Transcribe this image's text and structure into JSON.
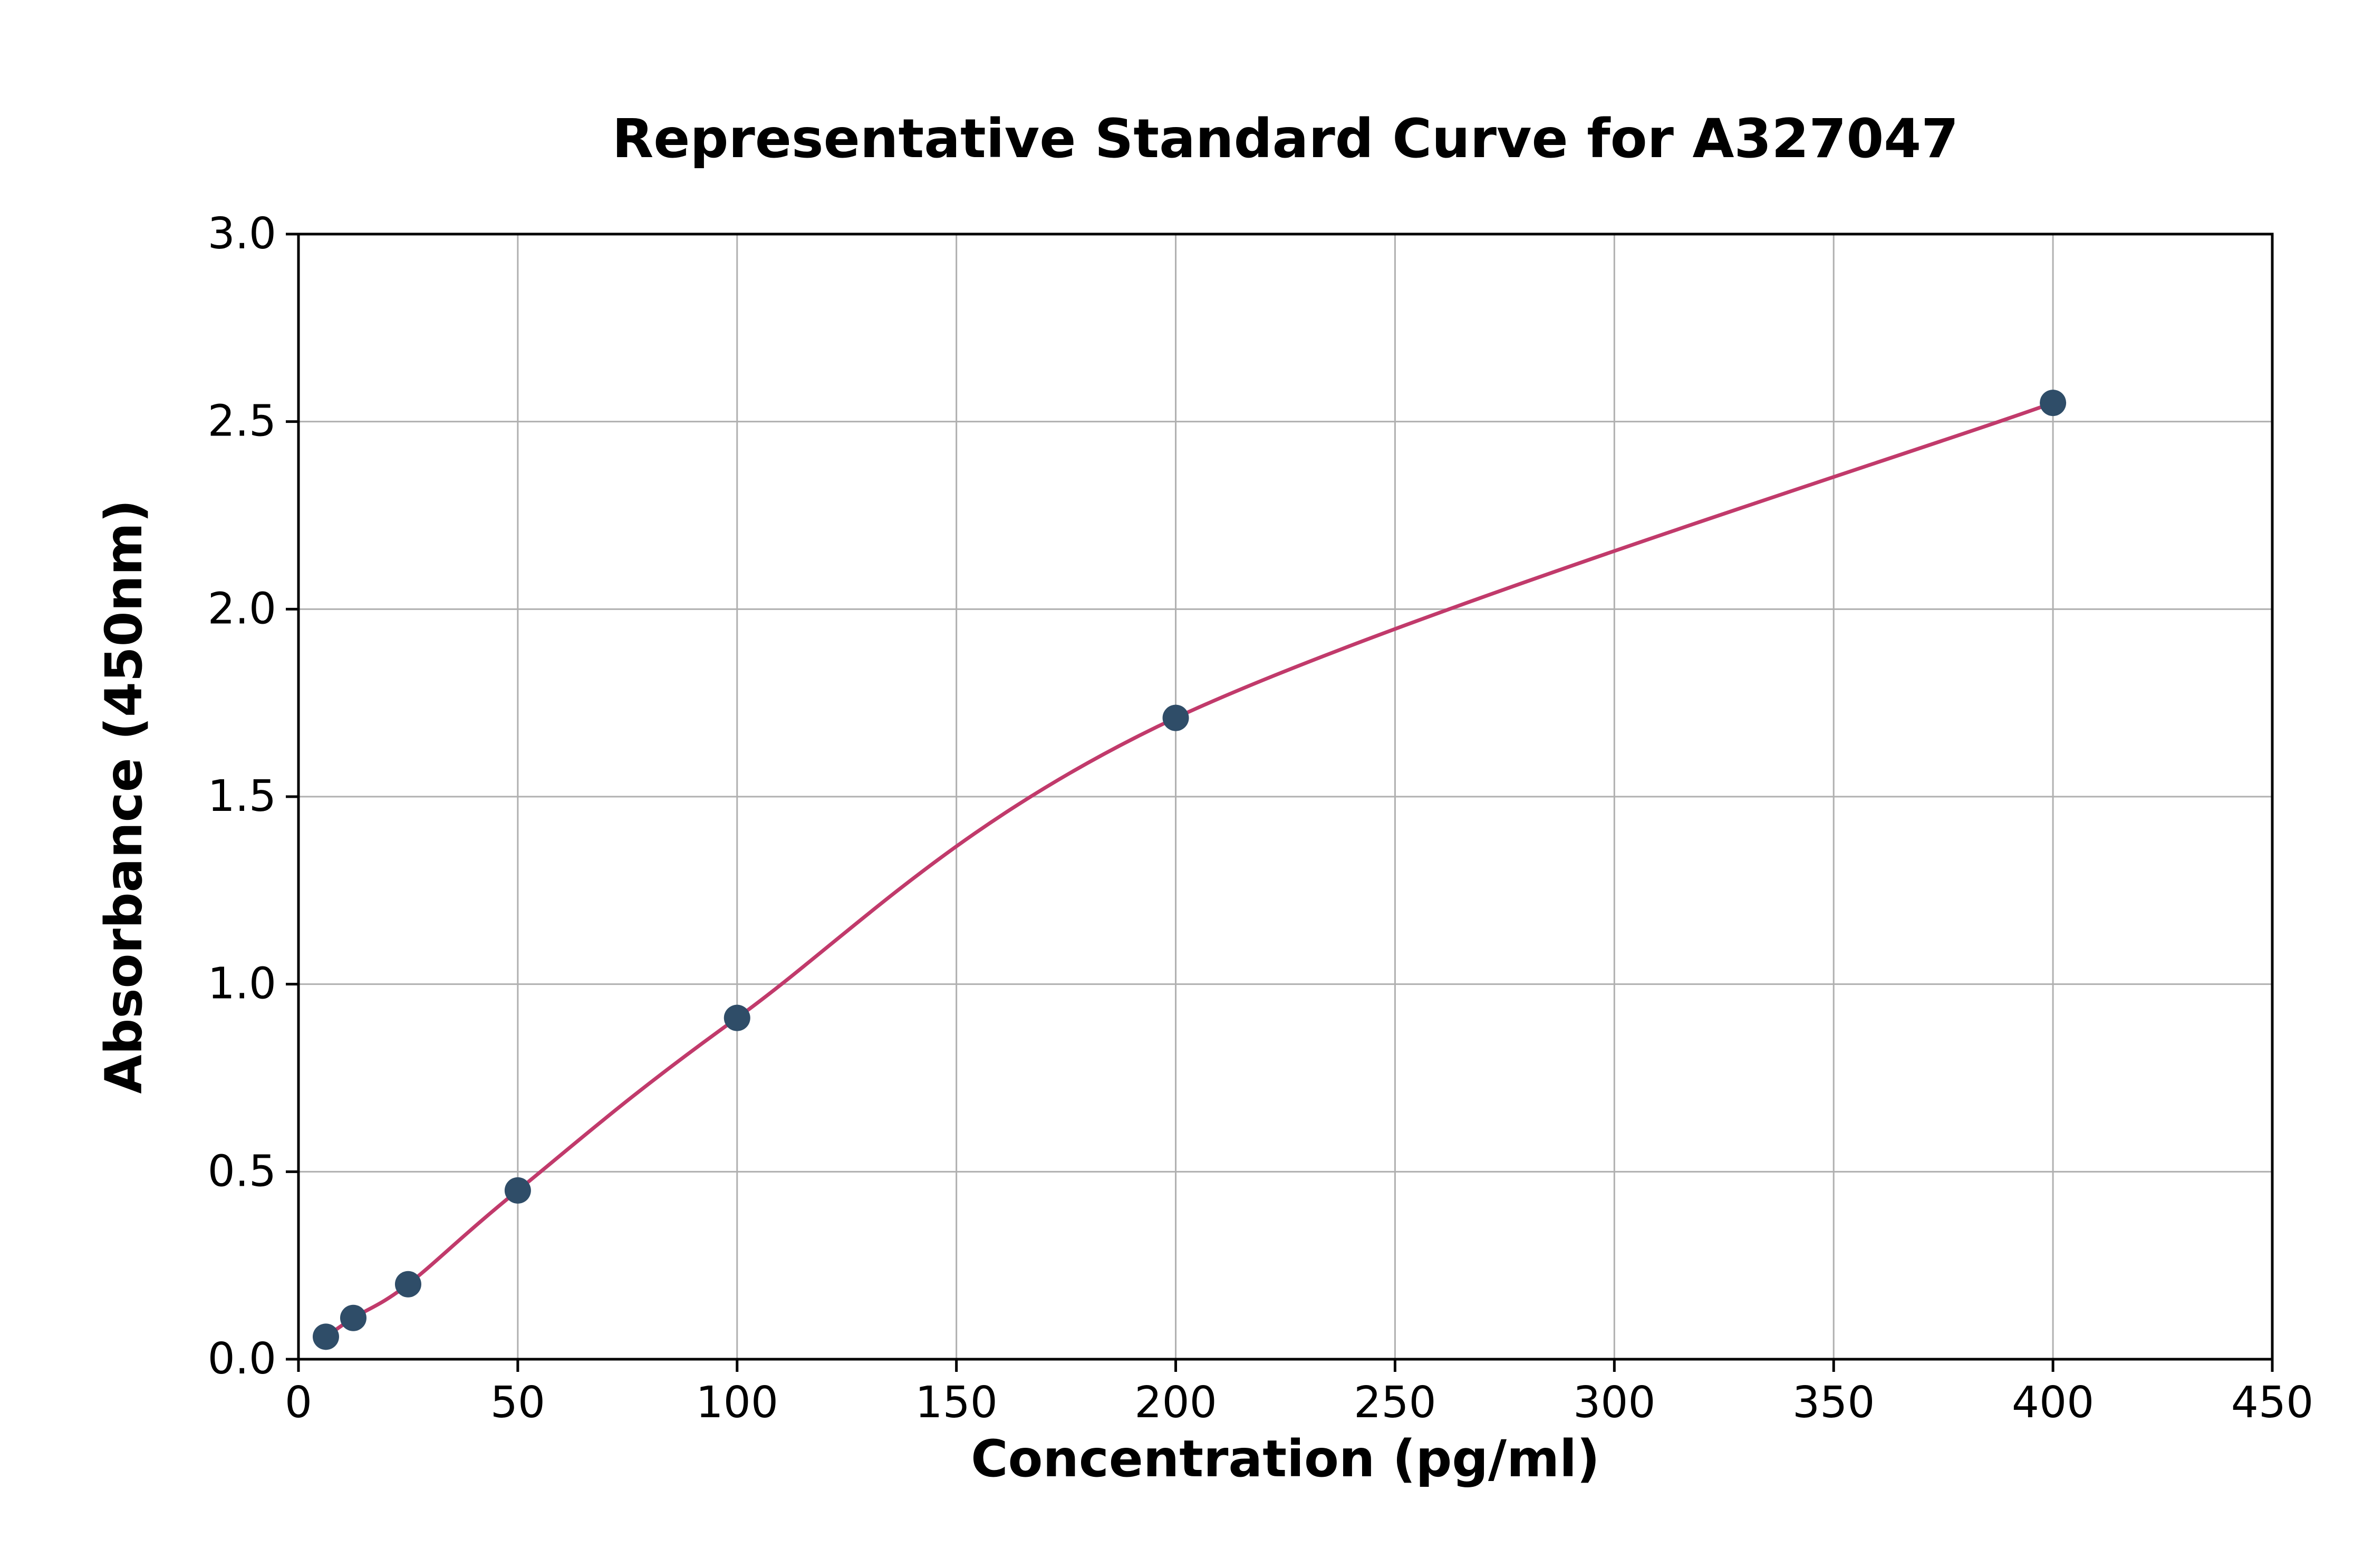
{
  "chart_data": {
    "type": "scatter",
    "title": "Representative Standard Curve for A327047",
    "xlabel": "Concentration (pg/ml)",
    "ylabel": "Absorbance (450nm)",
    "xlim": [
      0,
      450
    ],
    "ylim": [
      0.0,
      3.0
    ],
    "x_ticks": [
      0,
      50,
      100,
      150,
      200,
      250,
      300,
      350,
      400,
      450
    ],
    "x_tick_labels": [
      "0",
      "50",
      "100",
      "150",
      "200",
      "250",
      "300",
      "350",
      "400",
      "450"
    ],
    "y_ticks": [
      0.0,
      0.5,
      1.0,
      1.5,
      2.0,
      2.5,
      3.0
    ],
    "y_tick_labels": [
      "0.0",
      "0.5",
      "1.0",
      "1.5",
      "2.0",
      "2.5",
      "3.0"
    ],
    "grid": true,
    "legend": "none",
    "series": [
      {
        "name": "standards",
        "x": [
          6.25,
          12.5,
          25,
          50,
          100,
          200,
          400
        ],
        "y": [
          0.06,
          0.11,
          0.2,
          0.45,
          0.91,
          1.71,
          2.55
        ]
      }
    ],
    "fit_curve": {
      "style": "smooth-through-points",
      "from_series": "standards"
    },
    "colors": {
      "curve_line": "#c13a6b",
      "data_point": "#2f4d68",
      "grid_line": "#b0b0b0",
      "axis_line": "#000000",
      "background": "#ffffff",
      "text": "#000000"
    }
  }
}
